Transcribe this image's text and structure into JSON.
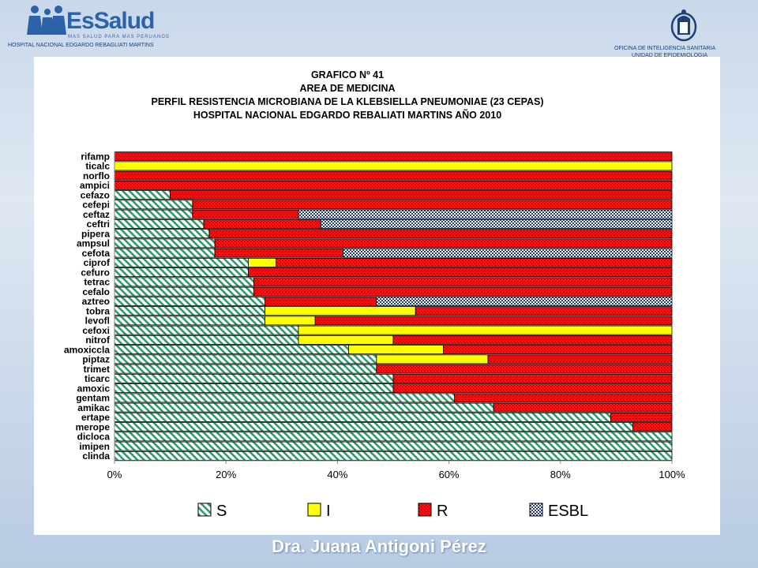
{
  "header": {
    "logo_text": "EsSalud",
    "logo_tagline": "MAS SALUD PARA MAS PERUANOS",
    "hospital": "HOSPITAL NACIONAL EDGARDO REBAGLIATI MARTINS",
    "office": "OFICINA DE INTELIGENCIA SANITARIA",
    "office_sub": "UNIDAD DE EPIDEMIOLOGIA"
  },
  "footer": {
    "author": "Dra. Juana Antigoni Pérez"
  },
  "colors": {
    "S": "#2e9a6a",
    "I": "#ffff00",
    "R": "#ee1111",
    "ESBL": "#7f8fb8",
    "background": "#c9d8ea"
  },
  "chart_data": {
    "type": "bar",
    "orientation": "horizontal",
    "stacked": "percent",
    "title_lines": [
      "GRAFICO Nº 41",
      "AREA DE MEDICINA",
      "PERFIL RESISTENCIA MICROBIANA DE LA KLEBSIELLA PNEUMONIAE (23 CEPAS)",
      "HOSPITAL NACIONAL EDGARDO REBALIATI MARTINS    AÑO 2010"
    ],
    "categories": [
      "rifamp",
      "ticalc",
      "norflo",
      "ampici",
      "cefazo",
      "cefepi",
      "ceftaz",
      "ceftri",
      "pipera",
      "ampsul",
      "cefota",
      "ciprof",
      "cefuro",
      "tetrac",
      "cefalo",
      "aztreo",
      "tobra",
      "levofl",
      "cefoxi",
      "nitrof",
      "amoxiccla",
      "piptaz",
      "trimet",
      "ticarc",
      "amoxic",
      "gentam",
      "amikac",
      "ertape",
      "merope",
      "dicloca",
      "imipen",
      "clinda"
    ],
    "series": [
      {
        "name": "S",
        "values": [
          0,
          0,
          0,
          0,
          10,
          14,
          14,
          16,
          17,
          18,
          18,
          24,
          24,
          25,
          25,
          27,
          27,
          27,
          33,
          33,
          42,
          47,
          47,
          50,
          50,
          61,
          68,
          89,
          93,
          100,
          100,
          100
        ]
      },
      {
        "name": "I",
        "values": [
          0,
          100,
          0,
          0,
          0,
          0,
          0,
          0,
          0,
          0,
          0,
          5,
          0,
          0,
          0,
          0,
          27,
          9,
          67,
          17,
          17,
          20,
          0,
          0,
          0,
          0,
          0,
          0,
          0,
          0,
          0,
          0
        ]
      },
      {
        "name": "R",
        "values": [
          100,
          0,
          100,
          100,
          90,
          86,
          19,
          21,
          83,
          82,
          23,
          71,
          76,
          75,
          75,
          20,
          46,
          64,
          0,
          50,
          41,
          33,
          53,
          50,
          50,
          39,
          32,
          11,
          7,
          0,
          0,
          0
        ]
      },
      {
        "name": "ESBL",
        "values": [
          0,
          0,
          0,
          0,
          0,
          0,
          67,
          63,
          0,
          0,
          59,
          0,
          0,
          0,
          0,
          53,
          0,
          0,
          0,
          0,
          0,
          0,
          0,
          0,
          0,
          0,
          0,
          0,
          0,
          0,
          0,
          0
        ]
      }
    ],
    "x_ticks": [
      "0%",
      "20%",
      "40%",
      "60%",
      "80%",
      "100%"
    ],
    "xlim": [
      0,
      100
    ],
    "legend_position": "bottom",
    "grid": false
  }
}
